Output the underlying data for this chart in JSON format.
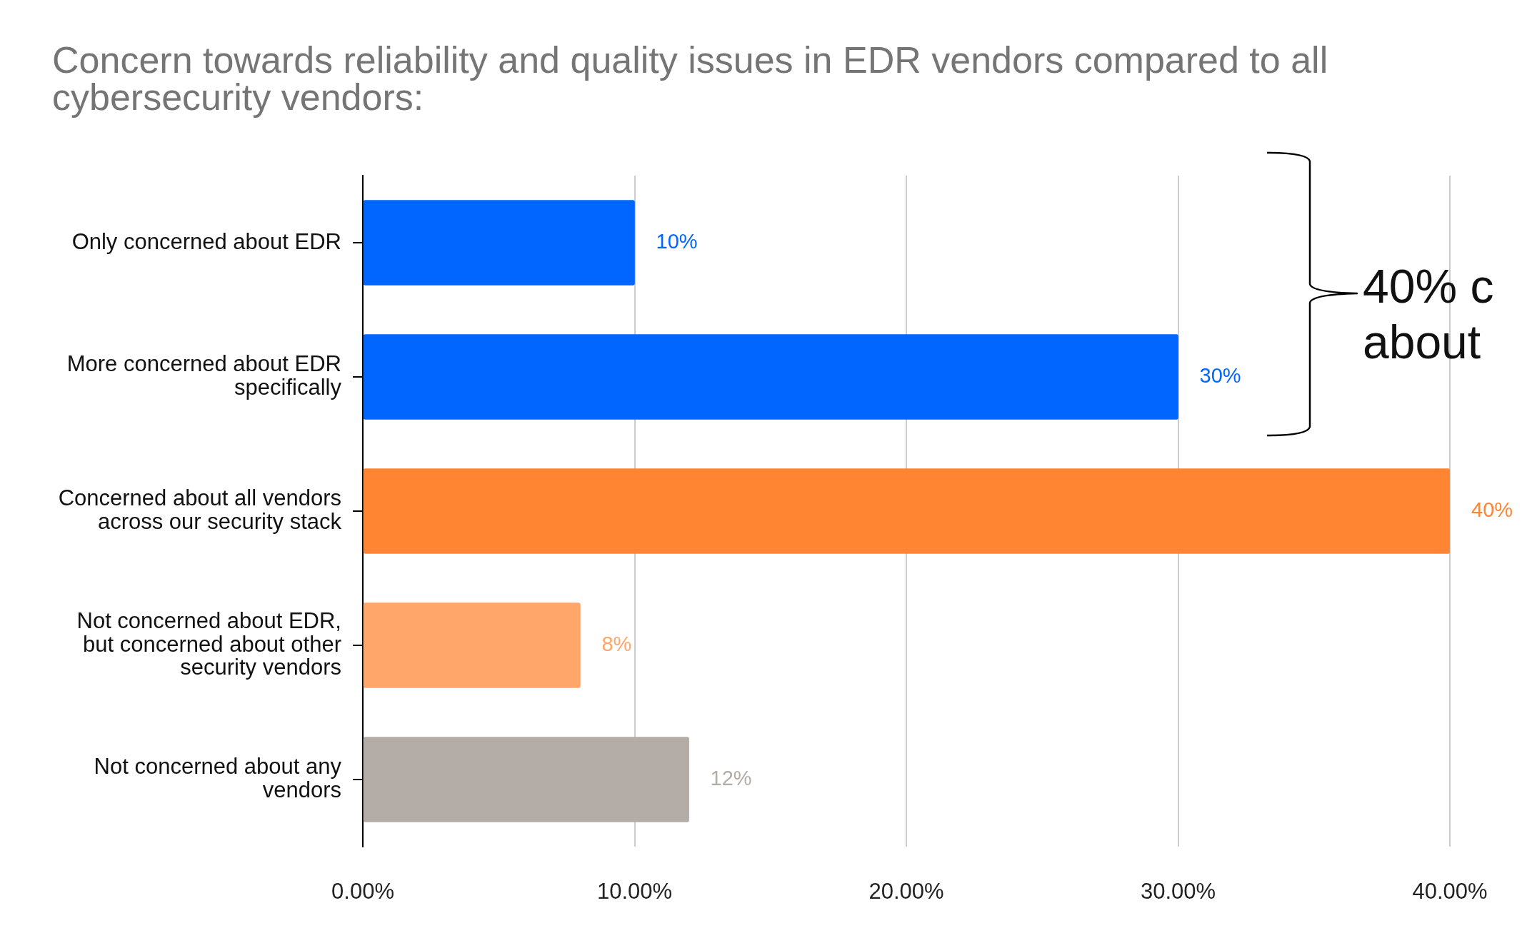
{
  "chart_data": {
    "type": "bar",
    "orientation": "horizontal",
    "title": "Concern towards reliability and quality issues in EDR vendors compared to all cybersecurity vendors:",
    "categories": [
      "Only concerned about EDR",
      "More concerned about EDR specifically",
      "Concerned about all vendors across our security stack",
      "Not concerned about EDR, but concerned about other security vendors",
      "Not concerned about any vendors"
    ],
    "values": [
      10,
      30,
      40,
      8,
      12
    ],
    "colors": [
      "#0066ff",
      "#0066ff",
      "#ff8533",
      "#ffa66b",
      "#b3aca7"
    ],
    "value_labels": [
      "10%",
      "30%",
      "40%",
      "8%",
      "12%"
    ],
    "xlim": [
      0,
      40
    ],
    "xticks": [
      {
        "value": 0,
        "label": "0.00%"
      },
      {
        "value": 10,
        "label": "10.00%"
      },
      {
        "value": 20,
        "label": "20.00%"
      },
      {
        "value": 30,
        "label": "30.00%"
      },
      {
        "value": 40,
        "label": "40.00%"
      }
    ],
    "grid": "x",
    "annotations": [
      "40% c\nabout"
    ]
  }
}
